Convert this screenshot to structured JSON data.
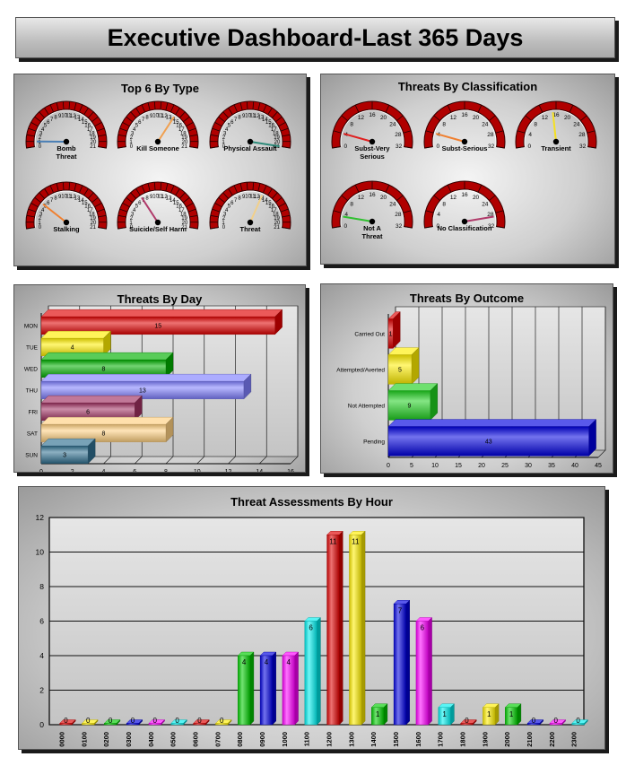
{
  "header": {
    "title": "Executive Dashboard-Last 365 Days"
  },
  "gauges_type": {
    "title": "Top 6 By Type",
    "max": 21,
    "ticks": [
      "0",
      "1",
      "2",
      "3",
      "4",
      "5",
      "6",
      "7",
      "8",
      "9",
      "10",
      "11",
      "12",
      "13",
      "14",
      "15",
      "16",
      "17",
      "18",
      "19",
      "20",
      "21"
    ],
    "items": [
      {
        "label": [
          "Bomb",
          "Threat"
        ],
        "value": 1,
        "needle": "#4a7fb5"
      },
      {
        "label": [
          "Kill Someone"
        ],
        "value": 14,
        "needle": "#f0a050"
      },
      {
        "label": [
          "Physical Assault"
        ],
        "value": 21,
        "needle": "#2e8b7a"
      },
      {
        "label": [
          "Stalking"
        ],
        "value": 5,
        "needle": "#f08030"
      },
      {
        "label": [
          "Suicide/Self Harm"
        ],
        "value": 7,
        "needle": "#b03a6a"
      },
      {
        "label": [
          "Threat"
        ],
        "value": 13,
        "needle": "#f2d08a"
      }
    ]
  },
  "gauges_class": {
    "title": "Threats By Classification",
    "max": 32,
    "ticks": [
      "0",
      "4",
      "8",
      "12",
      "16",
      "20",
      "24",
      "28",
      "32"
    ],
    "items": [
      {
        "label": [
          "Subst-Very",
          "Serious"
        ],
        "value": 4,
        "needle": "#e02020"
      },
      {
        "label": [
          "Subst-Serious"
        ],
        "value": 4,
        "needle": "#f08030"
      },
      {
        "label": [
          "Transient"
        ],
        "value": 15,
        "needle": "#f5e020"
      },
      {
        "label": [
          "Not A",
          "Threat"
        ],
        "value": 3,
        "needle": "#30c030"
      },
      {
        "label": [
          "No Classification"
        ],
        "value": 29,
        "needle": "#b03a6a"
      }
    ]
  },
  "chart_data": [
    {
      "type": "bar",
      "orientation": "horizontal",
      "title": "Threats By Day",
      "categories": [
        "MON",
        "TUE",
        "WED",
        "THU",
        "FRI",
        "SAT",
        "SUN"
      ],
      "values": [
        15,
        4,
        8,
        13,
        6,
        8,
        3
      ],
      "colors": [
        "#e00000",
        "#ffee00",
        "#00b000",
        "#8080ff",
        "#a03060",
        "#ffd080",
        "#307090"
      ],
      "xlim": [
        0,
        16
      ],
      "ticks": [
        "0",
        "2",
        "4",
        "6",
        "8",
        "10",
        "12",
        "14",
        "16"
      ]
    },
    {
      "type": "bar",
      "orientation": "horizontal",
      "title": "Threats By Outcome",
      "categories": [
        "Carried Out",
        "Attempted/Averted",
        "Not Attempted",
        "Pending"
      ],
      "values": [
        1,
        5,
        9,
        43
      ],
      "colors": [
        "#e00000",
        "#ffee00",
        "#20d020",
        "#0000e0"
      ],
      "xlim": [
        0,
        45
      ],
      "ticks": [
        "0",
        "5",
        "10",
        "15",
        "20",
        "25",
        "30",
        "35",
        "40",
        "45"
      ]
    },
    {
      "type": "bar",
      "title": "Threat Assessments By Hour",
      "categories": [
        "0000",
        "0100",
        "0200",
        "0300",
        "0400",
        "0500",
        "0600",
        "0700",
        "0800",
        "0900",
        "1000",
        "1100",
        "1200",
        "1300",
        "1400",
        "1500",
        "1600",
        "1700",
        "1800",
        "1900",
        "2000",
        "2100",
        "2200",
        "2300"
      ],
      "values": [
        0,
        0,
        0,
        0,
        0,
        0,
        0,
        0,
        4,
        4,
        4,
        6,
        11,
        11,
        1,
        7,
        6,
        1,
        0,
        1,
        1,
        0,
        0,
        0
      ],
      "colors": [
        "#e00000",
        "#ffee00",
        "#00cc00",
        "#0000e0",
        "#ff00ff",
        "#00eeee"
      ],
      "ylim": [
        0,
        12
      ],
      "ticks": [
        "0",
        "2",
        "4",
        "6",
        "8",
        "10",
        "12"
      ]
    }
  ]
}
